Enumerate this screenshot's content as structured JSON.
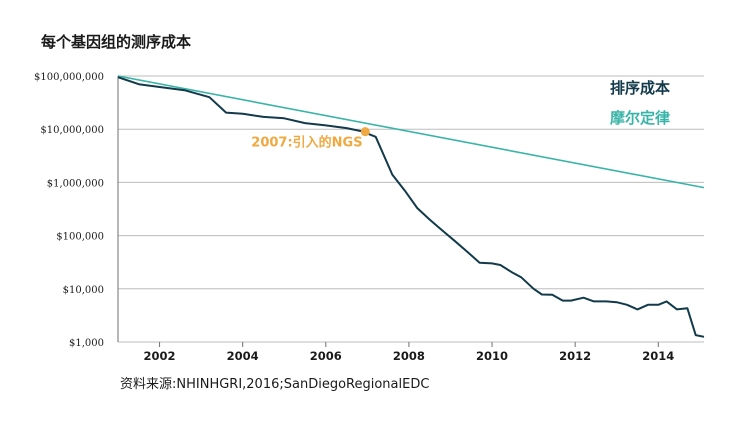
{
  "chart_data": {
    "type": "line",
    "title": "每个基因组的测序成本",
    "yscale": "log",
    "ylim": [
      1000,
      100000000
    ],
    "xlim": [
      2001,
      2015.1
    ],
    "y_ticks": [
      {
        "value": 100000000,
        "label": "$100,000,000"
      },
      {
        "value": 10000000,
        "label": "$10,000,000"
      },
      {
        "value": 1000000,
        "label": "$1,000,000"
      },
      {
        "value": 100000,
        "label": "$100,000"
      },
      {
        "value": 10000,
        "label": "$10,000"
      },
      {
        "value": 1000,
        "label": "$1,000"
      }
    ],
    "x_ticks": [
      {
        "value": 2002,
        "label": "2002"
      },
      {
        "value": 2004,
        "label": "2004"
      },
      {
        "value": 2006,
        "label": "2006"
      },
      {
        "value": 2008,
        "label": "2008"
      },
      {
        "value": 2010,
        "label": "2010"
      },
      {
        "value": 2012,
        "label": "2012"
      },
      {
        "value": 2014,
        "label": "2014"
      }
    ],
    "grid": "horizontal",
    "legend_position": "top-right",
    "series": [
      {
        "name": "排序成本",
        "color": "#123a4a",
        "points": [
          [
            2001.0,
            95000000
          ],
          [
            2001.5,
            70000000
          ],
          [
            2002.0,
            62000000
          ],
          [
            2002.6,
            54000000
          ],
          [
            2003.2,
            40000000
          ],
          [
            2003.6,
            20500000
          ],
          [
            2004.0,
            19500000
          ],
          [
            2004.5,
            17000000
          ],
          [
            2005.0,
            16000000
          ],
          [
            2005.5,
            13000000
          ],
          [
            2006.0,
            11800000
          ],
          [
            2006.5,
            10500000
          ],
          [
            2006.85,
            9200000
          ],
          [
            2007.2,
            7200000
          ],
          [
            2007.6,
            1400000
          ],
          [
            2007.9,
            700000
          ],
          [
            2008.2,
            330000
          ],
          [
            2008.5,
            200000
          ],
          [
            2008.8,
            125000
          ],
          [
            2009.1,
            80000
          ],
          [
            2009.4,
            50000
          ],
          [
            2009.7,
            31000
          ],
          [
            2010.0,
            30000
          ],
          [
            2010.2,
            28000
          ],
          [
            2010.5,
            20000
          ],
          [
            2010.7,
            16500
          ],
          [
            2011.0,
            10000
          ],
          [
            2011.2,
            7800
          ],
          [
            2011.45,
            7700
          ],
          [
            2011.7,
            6000
          ],
          [
            2011.9,
            6000
          ],
          [
            2012.2,
            6800
          ],
          [
            2012.45,
            5800
          ],
          [
            2012.75,
            5800
          ],
          [
            2013.0,
            5600
          ],
          [
            2013.25,
            5000
          ],
          [
            2013.5,
            4100
          ],
          [
            2013.75,
            5000
          ],
          [
            2014.0,
            5000
          ],
          [
            2014.2,
            5800
          ],
          [
            2014.45,
            4100
          ],
          [
            2014.7,
            4300
          ],
          [
            2014.9,
            1350
          ],
          [
            2015.1,
            1250
          ]
        ]
      },
      {
        "name": "摩尔定律",
        "color": "#3ab4a8",
        "points": [
          [
            2001.0,
            100000000
          ],
          [
            2015.1,
            800000
          ]
        ]
      }
    ],
    "annotations": [
      {
        "text": "2007:引入的NGS",
        "x": 2006.95,
        "y": 9000000,
        "color": "#f0a840"
      }
    ]
  },
  "source_note": "资料来源:NHINHGRI,2016;SanDiegoRegionalEDC"
}
